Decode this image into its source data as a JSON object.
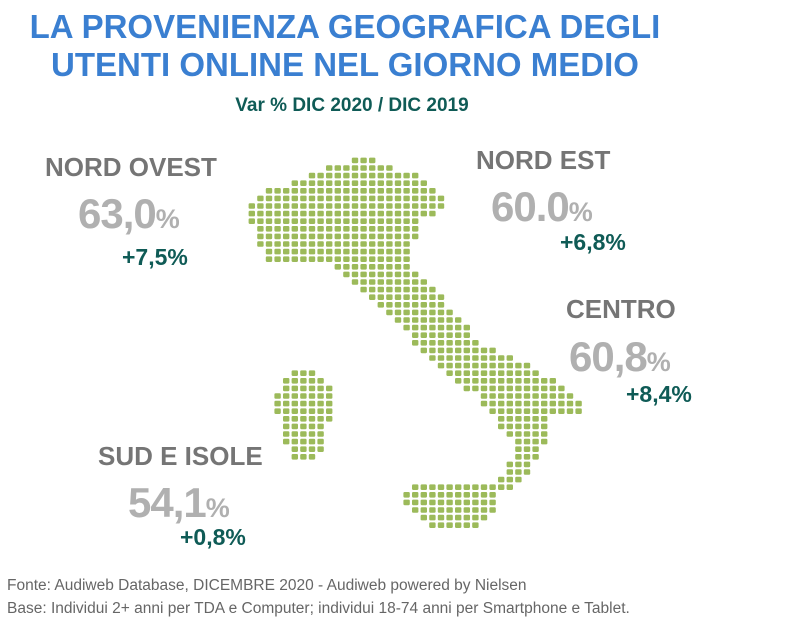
{
  "header": {
    "title_line1": "LA PROVENIENZA GEOGRAFICA DEGLI",
    "title_line2": "UTENTI ONLINE NEL GIORNO MEDIO",
    "subtitle": "Var % DIC 2020 / DIC 2019"
  },
  "chart_data": {
    "type": "map",
    "title": "LA PROVENIENZA GEOGRAFICA DEGLI UTENTI ONLINE NEL GIORNO MEDIO",
    "subtitle": "Var % DIC 2020 / DIC 2019",
    "map_color": "#9cba5a",
    "series": [
      {
        "region": "NORD OVEST",
        "value_text": "63,0",
        "value": 63.0,
        "unit": "%",
        "variation": "+7,5%"
      },
      {
        "region": "NORD EST",
        "value_text": "60.0",
        "value": 60.0,
        "unit": "%",
        "variation": "+6,8%"
      },
      {
        "region": "CENTRO",
        "value_text": "60,8",
        "value": 60.8,
        "unit": "%",
        "variation": "+8,4%"
      },
      {
        "region": "SUD E ISOLE",
        "value_text": "54,1",
        "value": 54.1,
        "unit": "%",
        "variation": "+0,8%"
      }
    ]
  },
  "footer": {
    "source": "Fonte: Audiweb Database, DICEMBRE 2020 - Audiweb powered by Nielsen",
    "base": "Base: Individui 2+ anni per TDA e Computer; individui 18-74 anni per Smartphone e Tablet."
  }
}
